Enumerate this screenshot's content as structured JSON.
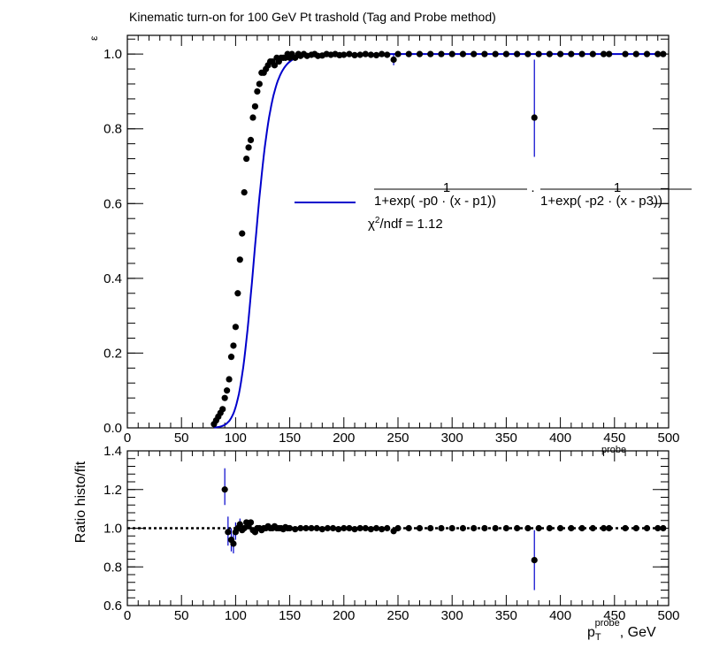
{
  "colors": {
    "fit": "#0000cc",
    "marker": "#000000",
    "frame": "#000000",
    "background": "#ffffff"
  },
  "chart_data": [
    {
      "type": "scatter",
      "title": "Kinematic turn-on for 100 GeV Pt trashold (Tag and Probe method)",
      "xlabel": "p_T^probe, GeV",
      "ylabel": "ε",
      "xlim": [
        0,
        500
      ],
      "ylim": [
        0,
        1.05
      ],
      "xticks": [
        "0",
        "50",
        "100",
        "150",
        "200",
        "250",
        "300",
        "350",
        "400",
        "450",
        "500"
      ],
      "yticks": [
        "0.0",
        "0.2",
        "0.4",
        "0.6",
        "0.8",
        "1.0"
      ],
      "grid": false,
      "legend": {
        "position": "middle-right",
        "numerator": "1",
        "denominator_1": "1+exp( -p0 · (x - p1))",
        "dot": "·",
        "denominator_2": "1+exp( -p2 · (x - p3))",
        "chi2_symbol": "χ",
        "chi2_sup": "2",
        "chi2_rest": "/ndf = 1.12"
      },
      "fit": {
        "p0": 0.112,
        "p1": 104.0,
        "p2": 0.12,
        "p3": 115.0
      },
      "series": [
        {
          "marker": "circle",
          "points": [
            [
              80,
              0.01
            ],
            [
              82,
              0.02
            ],
            [
              84,
              0.03
            ],
            [
              86,
              0.04
            ],
            [
              88,
              0.05
            ],
            [
              90,
              0.08
            ],
            [
              92,
              0.1
            ],
            [
              94,
              0.13
            ],
            [
              96,
              0.19
            ],
            [
              98,
              0.22
            ],
            [
              100,
              0.27
            ],
            [
              102,
              0.36
            ],
            [
              104,
              0.45
            ],
            [
              106,
              0.52
            ],
            [
              108,
              0.63
            ],
            [
              110,
              0.72
            ],
            [
              112,
              0.75
            ],
            [
              114,
              0.77
            ],
            [
              116,
              0.83
            ],
            [
              118,
              0.86
            ],
            [
              120,
              0.9
            ],
            [
              122,
              0.92
            ],
            [
              124,
              0.95
            ],
            [
              126,
              0.95
            ],
            [
              128,
              0.96
            ],
            [
              130,
              0.97
            ],
            [
              132,
              0.98
            ],
            [
              134,
              0.98
            ],
            [
              136,
              0.97
            ],
            [
              138,
              0.99
            ],
            [
              140,
              0.98
            ],
            [
              142,
              0.99
            ],
            [
              144,
              0.99
            ],
            [
              146,
              0.99
            ],
            [
              148,
              1.0
            ],
            [
              150,
              0.99
            ],
            [
              152,
              1.0
            ],
            [
              155,
              0.99
            ],
            [
              158,
              1.0
            ],
            [
              160,
              0.995
            ],
            [
              163,
              1.0
            ],
            [
              166,
              0.995
            ],
            [
              170,
              0.998
            ],
            [
              173,
              1.0
            ],
            [
              176,
              0.995
            ],
            [
              180,
              0.996
            ],
            [
              184,
              1.0
            ],
            [
              188,
              0.998
            ],
            [
              192,
              1.0
            ],
            [
              196,
              0.997
            ],
            [
              200,
              0.998
            ],
            [
              205,
              1.0
            ],
            [
              210,
              0.997
            ],
            [
              215,
              0.998
            ],
            [
              220,
              1.0
            ],
            [
              225,
              0.998
            ],
            [
              230,
              0.997
            ],
            [
              235,
              1.0
            ],
            [
              240,
              0.998
            ],
            [
              246,
              0.985
            ],
            [
              250,
              1.0
            ],
            [
              260,
              1.0
            ],
            [
              270,
              1.0
            ],
            [
              280,
              1.0
            ],
            [
              290,
              1.0
            ],
            [
              300,
              1.0
            ],
            [
              310,
              1.0
            ],
            [
              320,
              1.0
            ],
            [
              330,
              1.0
            ],
            [
              340,
              1.0
            ],
            [
              350,
              1.0
            ],
            [
              360,
              1.0
            ],
            [
              370,
              1.0
            ],
            [
              376,
              0.83
            ],
            [
              380,
              1.0
            ],
            [
              390,
              1.0
            ],
            [
              400,
              1.0
            ],
            [
              410,
              1.0
            ],
            [
              420,
              1.0
            ],
            [
              430,
              1.0
            ],
            [
              440,
              1.0
            ],
            [
              445,
              1.0
            ],
            [
              460,
              1.0
            ],
            [
              470,
              1.0
            ],
            [
              480,
              1.0
            ],
            [
              490,
              1.0
            ],
            [
              495,
              1.0
            ]
          ],
          "errors": [
            [
              376,
              0.725,
              0.985
            ],
            [
              246,
              0.97,
              1.0
            ]
          ]
        }
      ]
    },
    {
      "type": "scatter",
      "title": "",
      "xlabel": "p_T^probe, GeV",
      "ylabel": "Ratio histo/fit",
      "xlim": [
        0,
        500
      ],
      "ylim": [
        0.6,
        1.4
      ],
      "xticks": [
        "0",
        "50",
        "100",
        "150",
        "200",
        "250",
        "300",
        "350",
        "400",
        "450",
        "500"
      ],
      "yticks": [
        "0.6",
        "0.8",
        "1.0",
        "1.2",
        "1.4"
      ],
      "reference_line": 1.0,
      "series": [
        {
          "marker": "circle",
          "points": [
            [
              90,
              1.2
            ],
            [
              93,
              0.98
            ],
            [
              96,
              0.94
            ],
            [
              98,
              0.92
            ],
            [
              100,
              0.98
            ],
            [
              102,
              1.0
            ],
            [
              104,
              1.02
            ],
            [
              106,
              0.99
            ],
            [
              108,
              1.0
            ],
            [
              110,
              1.03
            ],
            [
              112,
              1.01
            ],
            [
              114,
              1.03
            ],
            [
              116,
              0.99
            ],
            [
              118,
              0.98
            ],
            [
              120,
              1.0
            ],
            [
              122,
              1.0
            ],
            [
              124,
              0.99
            ],
            [
              126,
              1.0
            ],
            [
              128,
              1.0
            ],
            [
              130,
              1.01
            ],
            [
              132,
              1.0
            ],
            [
              134,
              1.0
            ],
            [
              136,
              1.01
            ],
            [
              138,
              1.0
            ],
            [
              140,
              1.0
            ],
            [
              142,
              1.0
            ],
            [
              144,
              0.995
            ],
            [
              146,
              1.005
            ],
            [
              148,
              1.0
            ],
            [
              150,
              1.0
            ],
            [
              155,
              0.995
            ],
            [
              160,
              1.0
            ],
            [
              165,
              1.0
            ],
            [
              170,
              1.0
            ],
            [
              175,
              1.0
            ],
            [
              180,
              0.995
            ],
            [
              185,
              1.0
            ],
            [
              190,
              1.0
            ],
            [
              195,
              0.995
            ],
            [
              200,
              1.0
            ],
            [
              205,
              1.0
            ],
            [
              210,
              0.995
            ],
            [
              215,
              1.0
            ],
            [
              220,
              1.0
            ],
            [
              225,
              0.995
            ],
            [
              230,
              1.0
            ],
            [
              235,
              0.995
            ],
            [
              240,
              1.0
            ],
            [
              246,
              0.985
            ],
            [
              250,
              1.0
            ],
            [
              260,
              1.0
            ],
            [
              270,
              1.0
            ],
            [
              280,
              1.0
            ],
            [
              290,
              1.0
            ],
            [
              300,
              1.0
            ],
            [
              310,
              1.0
            ],
            [
              320,
              1.0
            ],
            [
              330,
              1.0
            ],
            [
              340,
              1.0
            ],
            [
              350,
              1.0
            ],
            [
              360,
              1.0
            ],
            [
              370,
              1.0
            ],
            [
              376,
              0.835
            ],
            [
              380,
              1.0
            ],
            [
              390,
              1.0
            ],
            [
              400,
              1.0
            ],
            [
              410,
              1.0
            ],
            [
              420,
              1.0
            ],
            [
              430,
              1.0
            ],
            [
              440,
              1.0
            ],
            [
              445,
              1.0
            ],
            [
              460,
              1.0
            ],
            [
              470,
              1.0
            ],
            [
              480,
              1.0
            ],
            [
              490,
              1.0
            ],
            [
              495,
              1.0
            ]
          ],
          "errors": [
            [
              90,
              1.12,
              1.31
            ],
            [
              93,
              0.91,
              1.06
            ],
            [
              96,
              0.88,
              1.0
            ],
            [
              98,
              0.87,
              0.97
            ],
            [
              100,
              0.94,
              1.03
            ],
            [
              104,
              0.99,
              1.05
            ],
            [
              376,
              0.68,
              0.99
            ]
          ]
        }
      ]
    }
  ]
}
